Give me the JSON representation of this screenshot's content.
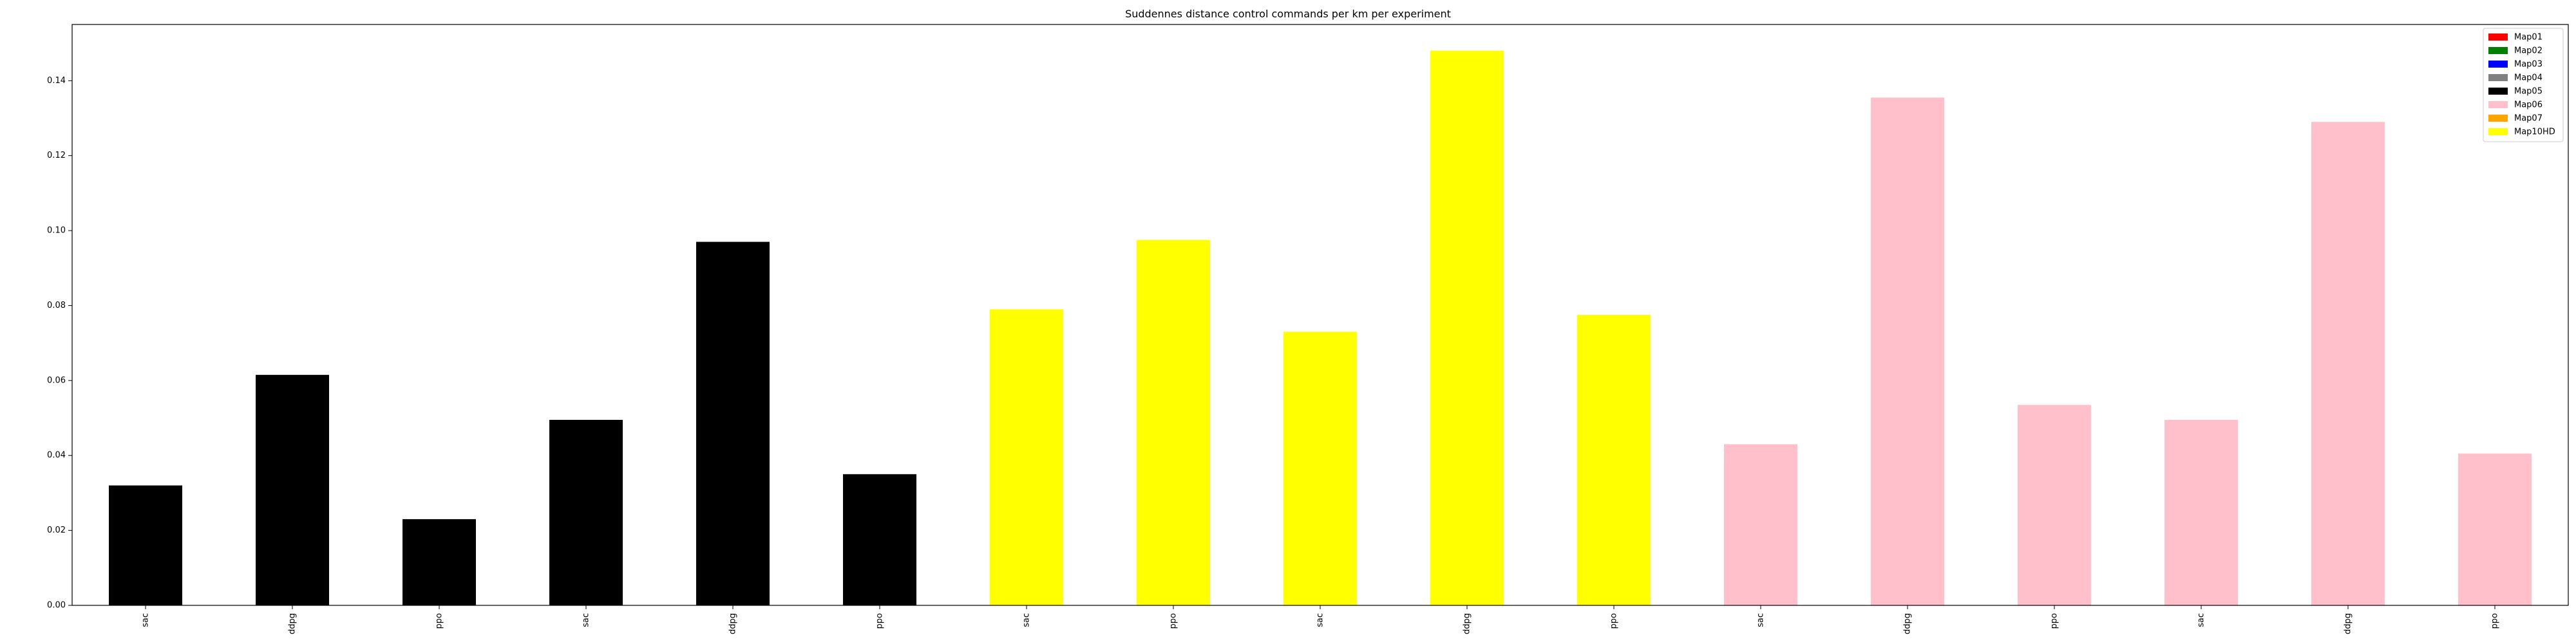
{
  "chart_data": {
    "type": "bar",
    "title": "Suddennes distance control commands per km per experiment",
    "xlabel": "",
    "ylabel": "",
    "ylim": [
      0,
      0.155
    ],
    "yticks": [
      0.0,
      0.02,
      0.04,
      0.06,
      0.08,
      0.1,
      0.12,
      0.14
    ],
    "ytick_labels": [
      "0.00",
      "0.02",
      "0.04",
      "0.06",
      "0.08",
      "0.10",
      "0.12",
      "0.14"
    ],
    "categories": [
      "sac",
      "ddpg",
      "ppo",
      "sac",
      "ddpg",
      "ppo",
      "sac",
      "ppo",
      "sac",
      "ddpg",
      "ppo",
      "sac",
      "ddpg",
      "ppo",
      "sac",
      "ddpg",
      "ppo"
    ],
    "values": [
      0.032,
      0.0615,
      0.023,
      0.0495,
      0.097,
      0.035,
      0.079,
      0.0975,
      0.073,
      0.148,
      0.0775,
      0.043,
      0.1355,
      0.0535,
      0.0495,
      0.129,
      0.0405
    ],
    "bar_colors": [
      "#000000",
      "#000000",
      "#000000",
      "#000000",
      "#000000",
      "#000000",
      "#ffff00",
      "#ffff00",
      "#ffff00",
      "#ffff00",
      "#ffff00",
      "#ffc0cb",
      "#ffc0cb",
      "#ffc0cb",
      "#ffc0cb",
      "#ffc0cb",
      "#ffc0cb"
    ],
    "grid": false,
    "legend_position": "top-right",
    "legend": [
      {
        "name": "Map01",
        "color": "#ff0000"
      },
      {
        "name": "Map02",
        "color": "#008000"
      },
      {
        "name": "Map03",
        "color": "#0000ff"
      },
      {
        "name": "Map04",
        "color": "#808080"
      },
      {
        "name": "Map05",
        "color": "#000000"
      },
      {
        "name": "Map06",
        "color": "#ffc0cb"
      },
      {
        "name": "Map07",
        "color": "#ffa500"
      },
      {
        "name": "Map10HD",
        "color": "#ffff00"
      }
    ]
  }
}
